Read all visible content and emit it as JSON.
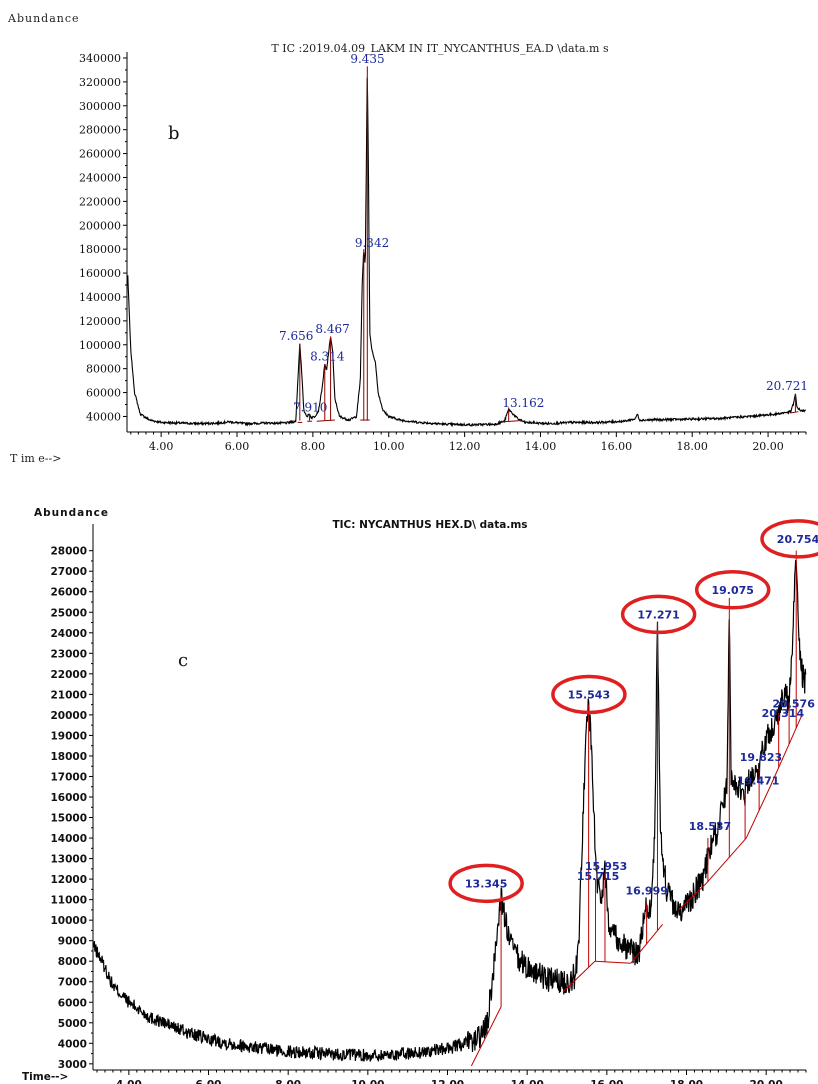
{
  "chart_data": [
    {
      "type": "line",
      "panel_letter": "b",
      "title": "T IC :2019.04.09_LAKM IN IT_NYCANTHUS_EA.D \\data.m s",
      "ylabel": "Abundance",
      "xlabel": "T im e-->",
      "xlim": [
        3.1,
        21.0
      ],
      "ylim": [
        27000,
        345000
      ],
      "xticks": [
        4,
        6,
        8,
        10,
        12,
        14,
        16,
        18,
        20
      ],
      "xtick_labels": [
        "4.00",
        "6.00",
        "8.00",
        "10.00",
        "12.00",
        "14.00",
        "16.00",
        "18.00",
        "20.00"
      ],
      "yticks": [
        40000,
        60000,
        80000,
        100000,
        120000,
        140000,
        160000,
        180000,
        200000,
        220000,
        240000,
        260000,
        280000,
        300000,
        320000,
        340000
      ],
      "ytick_labels": [
        "40000",
        "60000",
        "80000",
        "100000",
        "120000",
        "140000",
        "160000",
        "180000",
        "200000",
        "220000",
        "240000",
        "260000",
        "280000",
        "300000",
        "320000",
        "340000"
      ],
      "line_color": "#000000",
      "integration_color": "#8b0000",
      "label_color": "#1d2a9a",
      "trace": [
        [
          3.12,
          158000
        ],
        [
          3.2,
          95000
        ],
        [
          3.3,
          60000
        ],
        [
          3.45,
          42000
        ],
        [
          3.7,
          37000
        ],
        [
          4.0,
          35000
        ],
        [
          4.5,
          34500
        ],
        [
          5.0,
          34000
        ],
        [
          5.5,
          34500
        ],
        [
          5.8,
          35500
        ],
        [
          6.2,
          34000
        ],
        [
          6.8,
          34500
        ],
        [
          7.3,
          34500
        ],
        [
          7.55,
          36000
        ],
        [
          7.62,
          80000
        ],
        [
          7.656,
          101000
        ],
        [
          7.7,
          80000
        ],
        [
          7.76,
          45000
        ],
        [
          7.85,
          40000
        ],
        [
          7.91,
          42000
        ],
        [
          7.96,
          39000
        ],
        [
          8.05,
          40000
        ],
        [
          8.15,
          45000
        ],
        [
          8.25,
          65000
        ],
        [
          8.314,
          84000
        ],
        [
          8.36,
          78000
        ],
        [
          8.42,
          95000
        ],
        [
          8.467,
          107000
        ],
        [
          8.52,
          95000
        ],
        [
          8.58,
          55000
        ],
        [
          8.7,
          40000
        ],
        [
          8.95,
          37000
        ],
        [
          9.15,
          40000
        ],
        [
          9.25,
          70000
        ],
        [
          9.3,
          150000
        ],
        [
          9.342,
          180000
        ],
        [
          9.38,
          165000
        ],
        [
          9.41,
          250000
        ],
        [
          9.435,
          333000
        ],
        [
          9.46,
          260000
        ],
        [
          9.5,
          110000
        ],
        [
          9.56,
          95000
        ],
        [
          9.65,
          85000
        ],
        [
          9.72,
          60000
        ],
        [
          9.85,
          45000
        ],
        [
          10.0,
          40000
        ],
        [
          10.3,
          37000
        ],
        [
          10.8,
          35000
        ],
        [
          11.5,
          33500
        ],
        [
          12.2,
          33000
        ],
        [
          12.8,
          33500
        ],
        [
          13.05,
          36000
        ],
        [
          13.162,
          46000
        ],
        [
          13.28,
          42000
        ],
        [
          13.4,
          38000
        ],
        [
          13.6,
          35000
        ],
        [
          14.2,
          34000
        ],
        [
          14.8,
          35000
        ],
        [
          15.5,
          35000
        ],
        [
          16.2,
          36000
        ],
        [
          16.5,
          38000
        ],
        [
          16.55,
          42000
        ],
        [
          16.62,
          37000
        ],
        [
          17.5,
          37500
        ],
        [
          18.3,
          38000
        ],
        [
          18.8,
          38500
        ],
        [
          19.5,
          40000
        ],
        [
          20.2,
          42000
        ],
        [
          20.6,
          44000
        ],
        [
          20.68,
          52000
        ],
        [
          20.721,
          59000
        ],
        [
          20.76,
          48000
        ],
        [
          20.85,
          45000
        ],
        [
          21.0,
          44500
        ]
      ],
      "peaks": [
        {
          "label": "7.656",
          "x": 7.656,
          "y": 101000,
          "label_x": 7.56,
          "label_y": 104000
        },
        {
          "label": "7.910",
          "x": 7.91,
          "y": 42000,
          "label_x": 7.93,
          "label_y": 44000
        },
        {
          "label": "8.314",
          "x": 8.314,
          "y": 84000,
          "label_x": 8.38,
          "label_y": 87000
        },
        {
          "label": "8.467",
          "x": 8.467,
          "y": 107000,
          "label_x": 8.52,
          "label_y": 110000
        },
        {
          "label": "9.342",
          "x": 9.342,
          "y": 180000,
          "label_x": 9.56,
          "label_y": 182000
        },
        {
          "label": "9.435",
          "x": 9.435,
          "y": 333000,
          "label_x": 9.44,
          "label_y": 336000
        },
        {
          "label": "13.162",
          "x": 13.162,
          "y": 46000,
          "label_x": 13.55,
          "label_y": 48000
        },
        {
          "label": "20.721",
          "x": 20.721,
          "y": 59000,
          "label_x": 20.5,
          "label_y": 62000
        }
      ],
      "integrations": [
        {
          "from": [
            7.6,
            35000
          ],
          "to": [
            7.72,
            35000
          ]
        },
        {
          "from": [
            7.85,
            36000
          ],
          "to": [
            7.98,
            36000
          ]
        },
        {
          "from": [
            8.1,
            36000
          ],
          "to": [
            8.58,
            37000
          ]
        },
        {
          "from": [
            9.25,
            37000
          ],
          "to": [
            9.5,
            37000
          ]
        },
        {
          "from": [
            13.0,
            35500
          ],
          "to": [
            13.45,
            36500
          ]
        },
        {
          "from": [
            20.6,
            43000
          ],
          "to": [
            20.8,
            44000
          ]
        }
      ]
    },
    {
      "type": "line",
      "panel_letter": "c",
      "title": "TIC: NYCANTHUS HEX.D\\ data.ms",
      "ylabel": "Abundance",
      "xlabel": "Time-->",
      "xlim": [
        3.1,
        21.0
      ],
      "ylim": [
        2700,
        29300
      ],
      "xticks": [
        4,
        6,
        8,
        10,
        12,
        14,
        16,
        18,
        20
      ],
      "xtick_labels": [
        "4.00",
        "6.00",
        "8.00",
        "10.00",
        "12.00",
        "14.00",
        "16.00",
        "18.00",
        "20.00"
      ],
      "yticks": [
        3000,
        4000,
        5000,
        6000,
        7000,
        8000,
        9000,
        10000,
        11000,
        12000,
        13000,
        14000,
        15000,
        16000,
        17000,
        18000,
        19000,
        20000,
        21000,
        22000,
        23000,
        24000,
        25000,
        26000,
        27000,
        28000
      ],
      "ytick_labels": [
        "3000",
        "4000",
        "5000",
        "6000",
        "7000",
        "8000",
        "9000",
        "10000",
        "11000",
        "12000",
        "13000",
        "14000",
        "15000",
        "16000",
        "17000",
        "18000",
        "19000",
        "20000",
        "21000",
        "22000",
        "23000",
        "24000",
        "25000",
        "26000",
        "27000",
        "28000"
      ],
      "line_color": "#000000",
      "integration_color": "#c00000",
      "label_color": "#1d2a9a",
      "highlight_color": "#e02020",
      "trace": [
        [
          3.1,
          8800
        ],
        [
          3.3,
          8100
        ],
        [
          3.6,
          6800
        ],
        [
          4.0,
          6000
        ],
        [
          4.5,
          5300
        ],
        [
          5.0,
          4900
        ],
        [
          5.5,
          4500
        ],
        [
          6.0,
          4200
        ],
        [
          6.5,
          4000
        ],
        [
          7.0,
          3850
        ],
        [
          7.5,
          3700
        ],
        [
          8.0,
          3600
        ],
        [
          8.5,
          3550
        ],
        [
          9.0,
          3500
        ],
        [
          9.5,
          3450
        ],
        [
          10.0,
          3400
        ],
        [
          10.5,
          3450
        ],
        [
          11.0,
          3500
        ],
        [
          11.5,
          3600
        ],
        [
          12.0,
          3750
        ],
        [
          12.5,
          4000
        ],
        [
          12.8,
          4300
        ],
        [
          13.0,
          4900
        ],
        [
          13.15,
          7500
        ],
        [
          13.3,
          10500
        ],
        [
          13.345,
          11200
        ],
        [
          13.4,
          10500
        ],
        [
          13.55,
          9000
        ],
        [
          13.8,
          8000
        ],
        [
          14.1,
          7600
        ],
        [
          14.4,
          7200
        ],
        [
          14.7,
          7000
        ],
        [
          15.0,
          7000
        ],
        [
          15.2,
          7300
        ],
        [
          15.3,
          9000
        ],
        [
          15.35,
          12200
        ],
        [
          15.4,
          15000
        ],
        [
          15.5,
          19800
        ],
        [
          15.543,
          20500
        ],
        [
          15.6,
          19000
        ],
        [
          15.7,
          14000
        ],
        [
          15.75,
          12000
        ],
        [
          15.85,
          11000
        ],
        [
          15.953,
          12300
        ],
        [
          16.05,
          10000
        ],
        [
          16.3,
          9000
        ],
        [
          16.6,
          8500
        ],
        [
          16.8,
          8400
        ],
        [
          16.999,
          10800
        ],
        [
          17.1,
          10400
        ],
        [
          17.2,
          14000
        ],
        [
          17.271,
          24500
        ],
        [
          17.35,
          14000
        ],
        [
          17.5,
          11500
        ],
        [
          17.7,
          10600
        ],
        [
          17.9,
          10400
        ],
        [
          18.1,
          11000
        ],
        [
          18.4,
          12000
        ],
        [
          18.6,
          13500
        ],
        [
          18.8,
          14500
        ],
        [
          18.96,
          16000
        ],
        [
          19.02,
          16700
        ],
        [
          19.075,
          25700
        ],
        [
          19.12,
          17000
        ],
        [
          19.3,
          16500
        ],
        [
          19.471,
          16200
        ],
        [
          19.6,
          17000
        ],
        [
          19.823,
          17400
        ],
        [
          20.0,
          19000
        ],
        [
          20.2,
          19500
        ],
        [
          20.314,
          20100
        ],
        [
          20.45,
          21000
        ],
        [
          20.576,
          20600
        ],
        [
          20.65,
          23000
        ],
        [
          20.754,
          28000
        ],
        [
          20.82,
          24000
        ],
        [
          20.9,
          22000
        ],
        [
          21.0,
          21500
        ]
      ],
      "peaks": [
        {
          "label": "13.345",
          "x": 13.345,
          "y": 11200,
          "label_x": 12.97,
          "label_y": 11600,
          "circled": true
        },
        {
          "label": "15.543",
          "x": 15.543,
          "y": 20500,
          "label_x": 15.55,
          "label_y": 20800,
          "circled": true
        },
        {
          "label": "15.953",
          "x": 15.953,
          "y": 12300,
          "label_x": 15.98,
          "label_y": 12450,
          "circled": false
        },
        {
          "label": "15.715",
          "x": 15.715,
          "y": 12000,
          "label_x": 15.78,
          "label_y": 11950,
          "circled": false
        },
        {
          "label": "16.999",
          "x": 16.999,
          "y": 10800,
          "label_x": 17.0,
          "label_y": 11250,
          "circled": false
        },
        {
          "label": "17.271",
          "x": 17.271,
          "y": 24500,
          "label_x": 17.3,
          "label_y": 24700,
          "circled": true
        },
        {
          "label": "18.537",
          "x": 18.537,
          "y": 14000,
          "label_x": 18.59,
          "label_y": 14400,
          "circled": false
        },
        {
          "label": "19.075",
          "x": 19.075,
          "y": 25700,
          "label_x": 19.16,
          "label_y": 25900,
          "circled": true
        },
        {
          "label": "19.471",
          "x": 19.471,
          "y": 16200,
          "label_x": 19.8,
          "label_y": 16600,
          "circled": false
        },
        {
          "label": "19.823",
          "x": 19.823,
          "y": 17400,
          "label_x": 19.87,
          "label_y": 17750,
          "circled": false
        },
        {
          "label": "20.314",
          "x": 20.314,
          "y": 20100,
          "label_x": 20.42,
          "label_y": 19900,
          "circled": false
        },
        {
          "label": "20.576",
          "x": 20.576,
          "y": 20600,
          "label_x": 20.69,
          "label_y": 20350,
          "circled": false
        },
        {
          "label": "20.754",
          "x": 20.754,
          "y": 28000,
          "label_x": 20.8,
          "label_y": 28380,
          "circled": true
        }
      ],
      "integrations": [
        {
          "from": [
            12.6,
            2900
          ],
          "to": [
            13.35,
            5800
          ]
        },
        {
          "from": [
            14.9,
            6500
          ],
          "to": [
            15.7,
            8000
          ]
        },
        {
          "from": [
            15.7,
            8000
          ],
          "to": [
            16.6,
            7900
          ]
        },
        {
          "from": [
            16.6,
            7900
          ],
          "to": [
            17.4,
            9800
          ]
        },
        {
          "from": [
            17.8,
            10500
          ],
          "to": [
            18.5,
            11800
          ]
        },
        {
          "from": [
            18.5,
            11800
          ],
          "to": [
            19.5,
            14000
          ]
        },
        {
          "from": [
            19.5,
            14000
          ],
          "to": [
            20.1,
            16500
          ]
        },
        {
          "from": [
            20.1,
            16500
          ],
          "to": [
            20.9,
            20000
          ]
        }
      ]
    }
  ]
}
